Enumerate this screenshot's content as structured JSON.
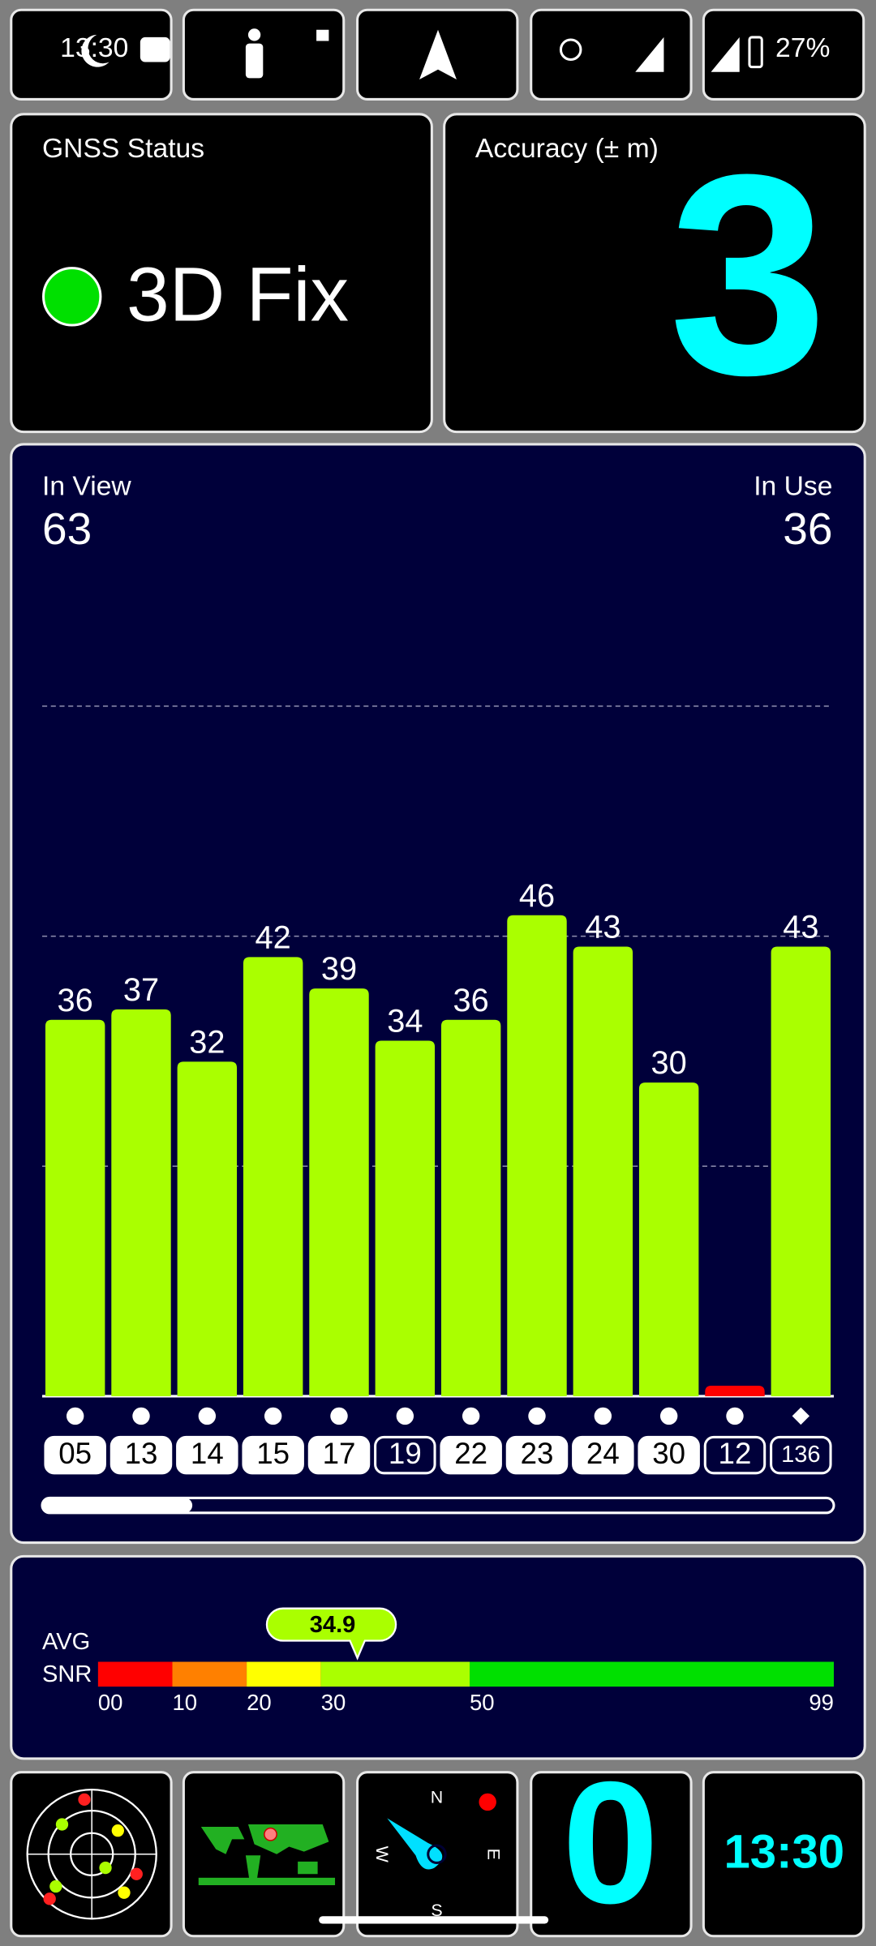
{
  "status_bar": {
    "time": "13:30",
    "battery": "27%"
  },
  "gnss_status": {
    "label": "GNSS Status",
    "value": "3D Fix",
    "indicator_color": "#00e000"
  },
  "accuracy": {
    "label": "Accuracy (± m)",
    "value": 3
  },
  "satellites": {
    "in_view_label": "In View",
    "in_view": 63,
    "in_use_label": "In Use",
    "in_use": 36,
    "chart": {
      "type": "bar",
      "categories": [
        "05",
        "13",
        "14",
        "15",
        "17",
        "19",
        "22",
        "23",
        "24",
        "30",
        "12",
        "136"
      ],
      "values": [
        36,
        37,
        32,
        42,
        39,
        34,
        36,
        46,
        43,
        30,
        1,
        43
      ],
      "value_labels": [
        "36",
        "37",
        "32",
        "42",
        "39",
        "34",
        "36",
        "46",
        "43",
        "30",
        null,
        "43"
      ],
      "colors": [
        "#aaff00",
        "#aaff00",
        "#aaff00",
        "#aaff00",
        "#aaff00",
        "#aaff00",
        "#aaff00",
        "#aaff00",
        "#aaff00",
        "#aaff00",
        "#ff0000",
        "#aaff00"
      ],
      "used": [
        true,
        true,
        true,
        true,
        true,
        false,
        true,
        true,
        true,
        true,
        false,
        false
      ],
      "markers": [
        "circle",
        "circle",
        "circle",
        "circle",
        "circle",
        "circle",
        "circle",
        "circle",
        "circle",
        "circle",
        "circle",
        "diamond"
      ],
      "ylim": [
        0,
        66
      ],
      "grid_values": [
        22,
        44,
        66
      ]
    }
  },
  "snr": {
    "label_line1": "AVG",
    "label_line2": "SNR",
    "average": 34.9,
    "xlim": [
      0,
      99
    ],
    "xticks": [
      {
        "value": 0,
        "label": "00"
      },
      10,
      20,
      30,
      50,
      99
    ],
    "segments": [
      {
        "from": 0,
        "to": 10,
        "color": "#ff0000"
      },
      {
        "from": 10,
        "to": 20,
        "color": "#ff8000"
      },
      {
        "from": 20,
        "to": 30,
        "color": "#ffff00"
      },
      {
        "from": 30,
        "to": 50,
        "color": "#aaff00"
      },
      {
        "from": 50,
        "to": 99,
        "color": "#00e000"
      }
    ]
  },
  "compass": {
    "north": "N",
    "east": "E",
    "south": "S",
    "west": "W"
  },
  "speed": 0,
  "clock": "13:30"
}
